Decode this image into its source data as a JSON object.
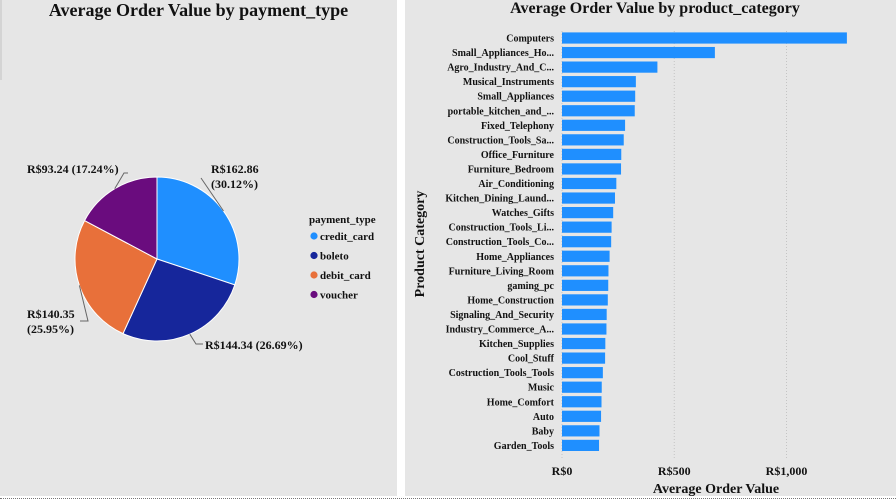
{
  "chart_data": [
    {
      "type": "pie",
      "title": "Average Order Value by payment_type",
      "legend_title": "payment_type",
      "legend_position": "right",
      "slices": [
        {
          "name": "credit_card",
          "value": 162.86,
          "label": "R$162.86",
          "pct_label": "(30.12%)",
          "color": "#1f8fff"
        },
        {
          "name": "boleto",
          "value": 144.34,
          "label": "R$144.34 (26.69%)",
          "color": "#16269b"
        },
        {
          "name": "debit_card",
          "value": 140.35,
          "label": "R$140.35",
          "pct_label": "(25.95%)",
          "color": "#e8703a"
        },
        {
          "name": "voucher",
          "value": 93.24,
          "label": "R$93.24 (17.24%)",
          "color": "#6a0c7e"
        }
      ]
    },
    {
      "type": "bar",
      "orientation": "horizontal",
      "title": "Average Order Value by product_category",
      "xlabel": "Average Order Value",
      "ylabel": "Product Category",
      "color": "#1f8fff",
      "xlim": [
        0,
        1250
      ],
      "x_ticks": [
        {
          "value": 0,
          "label": "R$0"
        },
        {
          "value": 500,
          "label": "R$500"
        },
        {
          "value": 1000,
          "label": "R$1,000"
        }
      ],
      "grid": "vertical dotted",
      "categories": [
        "Computers",
        "Small_Appliances_Ho...",
        "Agro_Industry_And_C...",
        "Musical_Instruments",
        "Small_Appliances",
        "portable_kitchen_and_...",
        "Fixed_Telephony",
        "Construction_Tools_Sa...",
        "Office_Furniture",
        "Furniture_Bedroom",
        "Air_Conditioning",
        "Kitchen_Dining_Laund...",
        "Watches_Gifts",
        "Construction_Tools_Li...",
        "Construction_Tools_Co...",
        "Home_Appliances",
        "Furniture_Living_Room",
        "gaming_pc",
        "Home_Construction",
        "Signaling_And_Security",
        "Industry_Commerce_A...",
        "Kitchen_Supplies",
        "Cool_Stuff",
        "Costruction_Tools_Tools",
        "Music",
        "Home_Comfort",
        "Auto",
        "Baby",
        "Garden_Tools"
      ],
      "values": [
        1269,
        681,
        425,
        329,
        326,
        324,
        281,
        275,
        264,
        263,
        242,
        236,
        228,
        221,
        219,
        212,
        207,
        206,
        204,
        199,
        198,
        193,
        192,
        182,
        177,
        176,
        174,
        167,
        165
      ]
    }
  ]
}
